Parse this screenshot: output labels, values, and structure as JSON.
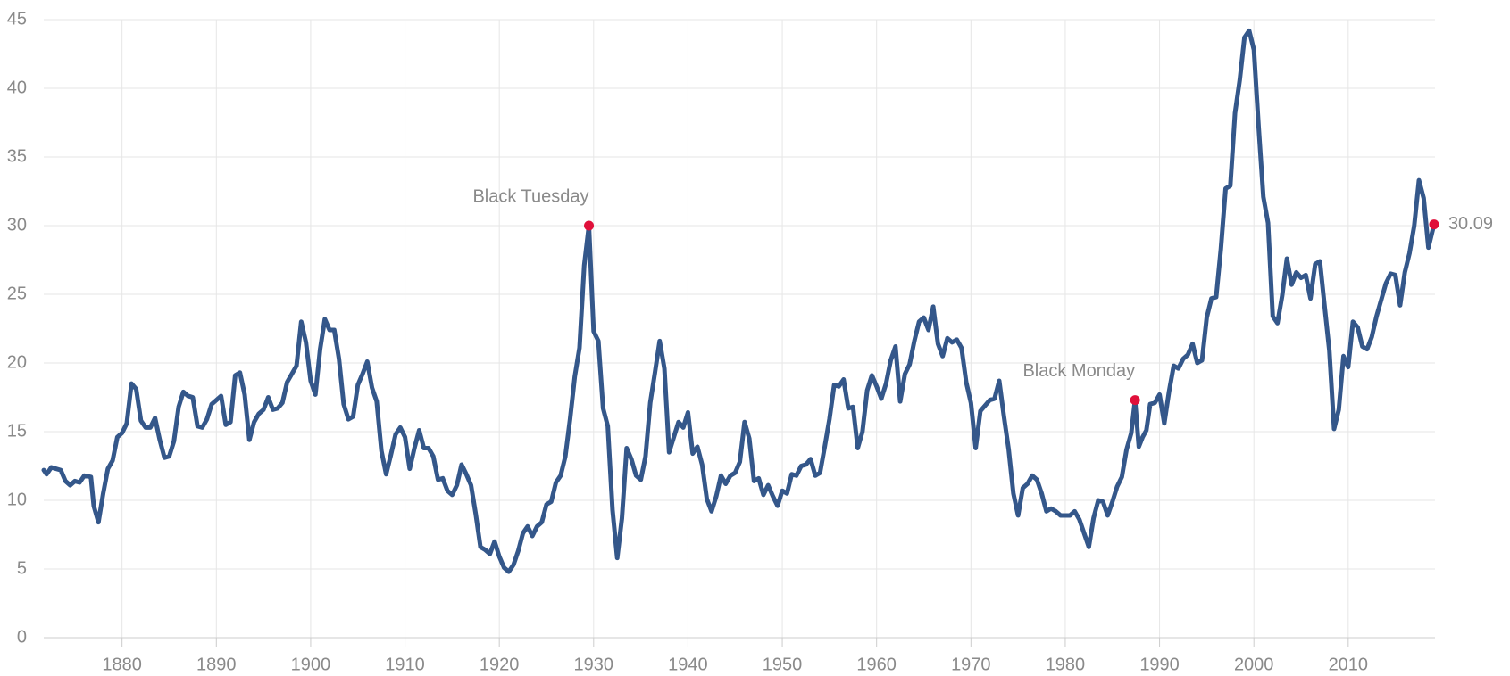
{
  "chart_data": {
    "type": "line",
    "x": [
      1871.7,
      1872,
      1872.5,
      1873.5,
      1874,
      1874.5,
      1875,
      1875.5,
      1876,
      1876.7,
      1877,
      1877.5,
      1878,
      1878.5,
      1879,
      1879.5,
      1880,
      1880.5,
      1881,
      1881.5,
      1882,
      1882.5,
      1883,
      1883.5,
      1884,
      1884.5,
      1885,
      1885.5,
      1886,
      1886.5,
      1887,
      1887.5,
      1888,
      1888.5,
      1889,
      1889.5,
      1890.5,
      1891,
      1891.5,
      1892,
      1892.5,
      1893,
      1893.5,
      1894,
      1894.5,
      1895,
      1895.5,
      1896,
      1896.5,
      1897,
      1897.5,
      1898.5,
      1899,
      1899.5,
      1900,
      1900.5,
      1901,
      1901.5,
      1902,
      1902.5,
      1903,
      1903.5,
      1904,
      1904.5,
      1905,
      1905.5,
      1906,
      1906.5,
      1907,
      1907.5,
      1908,
      1908.5,
      1909,
      1909.5,
      1910,
      1910.5,
      1911,
      1911.5,
      1912,
      1912.5,
      1913,
      1913.5,
      1914,
      1914.5,
      1915,
      1915.5,
      1916,
      1916.5,
      1917,
      1917.5,
      1918,
      1918.5,
      1919,
      1919.5,
      1920,
      1920.5,
      1921,
      1921.5,
      1922,
      1922.5,
      1923,
      1923.5,
      1924,
      1924.5,
      1925,
      1925.5,
      1926,
      1926.5,
      1927,
      1927.5,
      1928,
      1928.5,
      1929,
      1929.5,
      1930,
      1930.5,
      1931,
      1931.5,
      1932,
      1932.5,
      1933,
      1933.5,
      1934,
      1934.5,
      1935,
      1935.5,
      1936,
      1936.5,
      1937,
      1937.5,
      1938,
      1938.5,
      1939,
      1939.5,
      1940,
      1940.5,
      1941,
      1941.5,
      1942,
      1942.5,
      1943,
      1943.5,
      1944,
      1944.5,
      1945,
      1945.5,
      1946,
      1946.5,
      1947,
      1947.5,
      1948,
      1948.5,
      1949,
      1949.5,
      1950,
      1950.5,
      1951,
      1951.5,
      1952,
      1952.5,
      1953,
      1953.5,
      1954,
      1954.5,
      1955,
      1955.5,
      1956,
      1956.5,
      1957,
      1957.5,
      1958,
      1958.5,
      1959,
      1959.5,
      1960,
      1960.5,
      1961,
      1961.5,
      1962,
      1962.5,
      1963,
      1963.5,
      1964,
      1964.5,
      1965,
      1965.5,
      1966,
      1966.5,
      1967,
      1967.5,
      1968,
      1968.5,
      1969,
      1969.5,
      1970,
      1970.5,
      1971,
      1971.5,
      1972,
      1972.5,
      1973,
      1973.5,
      1974,
      1974.5,
      1975,
      1975.5,
      1976,
      1976.5,
      1977,
      1977.5,
      1978,
      1978.5,
      1979,
      1979.5,
      1980,
      1980.5,
      1981,
      1981.5,
      1982,
      1982.5,
      1983,
      1983.5,
      1984,
      1984.5,
      1985,
      1985.5,
      1986,
      1986.5,
      1987,
      1987.4,
      1987.8,
      1988.2,
      1988.6,
      1989,
      1989.5,
      1990,
      1990.5,
      1991,
      1991.5,
      1992,
      1992.5,
      1993,
      1993.5,
      1994,
      1994.5,
      1995,
      1995.5,
      1996,
      1996.5,
      1997,
      1997.5,
      1998,
      1998.5,
      1999,
      1999.5,
      2000,
      2000.5,
      2001,
      2001.5,
      2002,
      2002.5,
      2003,
      2003.5,
      2004,
      2004.5,
      2005,
      2005.5,
      2006,
      2006.5,
      2007,
      2007.5,
      2008,
      2008.5,
      2009,
      2009.5,
      2010,
      2010.5,
      2011,
      2011.5,
      2012,
      2012.5,
      2013,
      2013.5,
      2014,
      2014.5,
      2015,
      2015.5,
      2016,
      2016.5,
      2017,
      2017.5,
      2018,
      2018.5,
      2019.1
    ],
    "values": [
      12.2,
      11.9,
      12.4,
      12.2,
      11.4,
      11.1,
      11.4,
      11.3,
      11.8,
      11.7,
      9.6,
      8.4,
      10.5,
      12.3,
      12.9,
      14.6,
      14.9,
      15.6,
      18.5,
      18.1,
      15.8,
      15.3,
      15.3,
      16.0,
      14.4,
      13.1,
      13.2,
      14.3,
      16.8,
      17.9,
      17.6,
      17.5,
      15.4,
      15.3,
      15.9,
      17.0,
      17.6,
      15.5,
      15.7,
      19.1,
      19.3,
      17.7,
      14.4,
      15.7,
      16.3,
      16.6,
      17.5,
      16.6,
      16.7,
      17.1,
      18.6,
      19.8,
      23.0,
      21.5,
      18.7,
      17.7,
      21.0,
      23.2,
      22.4,
      22.4,
      20.3,
      17.0,
      15.9,
      16.1,
      18.4,
      19.2,
      20.1,
      18.2,
      17.2,
      13.6,
      11.9,
      13.3,
      14.8,
      15.3,
      14.6,
      12.3,
      13.8,
      15.1,
      13.8,
      13.8,
      13.2,
      11.5,
      11.6,
      10.7,
      10.4,
      11.1,
      12.6,
      11.9,
      11.1,
      9.0,
      6.6,
      6.4,
      6.1,
      7.0,
      5.9,
      5.1,
      4.8,
      5.3,
      6.3,
      7.6,
      8.1,
      7.4,
      8.1,
      8.4,
      9.7,
      9.9,
      11.3,
      11.8,
      13.2,
      15.9,
      19.0,
      21.1,
      27.1,
      30.0,
      22.3,
      21.6,
      16.7,
      15.4,
      9.3,
      5.8,
      8.7,
      13.8,
      13.0,
      11.8,
      11.5,
      13.2,
      17.1,
      19.3,
      21.6,
      19.6,
      13.5,
      14.6,
      15.7,
      15.3,
      16.4,
      13.4,
      13.9,
      12.6,
      10.1,
      9.2,
      10.3,
      11.8,
      11.2,
      11.8,
      12.0,
      12.8,
      15.7,
      14.5,
      11.4,
      11.6,
      10.4,
      11.1,
      10.3,
      9.6,
      10.7,
      10.5,
      11.9,
      11.8,
      12.5,
      12.6,
      13.0,
      11.8,
      12.0,
      13.9,
      15.9,
      18.4,
      18.3,
      18.8,
      16.7,
      16.8,
      13.8,
      15.0,
      18.0,
      19.1,
      18.3,
      17.4,
      18.5,
      20.2,
      21.2,
      17.2,
      19.2,
      19.9,
      21.6,
      23.0,
      23.3,
      22.4,
      24.1,
      21.4,
      20.5,
      21.8,
      21.5,
      21.7,
      21.1,
      18.6,
      17.1,
      13.8,
      16.5,
      16.9,
      17.3,
      17.4,
      18.7,
      16.1,
      13.7,
      10.5,
      8.9,
      10.9,
      11.2,
      11.8,
      11.5,
      10.5,
      9.2,
      9.4,
      9.2,
      8.9,
      8.9,
      8.9,
      9.2,
      8.6,
      7.6,
      6.6,
      8.7,
      10.0,
      9.9,
      8.9,
      9.9,
      11.0,
      11.7,
      13.7,
      14.9,
      17.3,
      13.9,
      14.6,
      15.1,
      17.0,
      17.1,
      17.7,
      15.6,
      17.9,
      19.8,
      19.6,
      20.3,
      20.6,
      21.4,
      20.0,
      20.2,
      23.3,
      24.7,
      24.8,
      28.3,
      32.7,
      32.9,
      38.2,
      40.6,
      43.7,
      44.2,
      42.8,
      37.2,
      32.1,
      30.2,
      23.4,
      22.9,
      24.9,
      27.6,
      25.7,
      26.6,
      26.2,
      26.4,
      24.7,
      27.2,
      27.4,
      24.1,
      20.9,
      15.2,
      16.6,
      20.5,
      19.7,
      23.0,
      22.6,
      21.2,
      21.0,
      21.9,
      23.4,
      24.6,
      25.8,
      26.5,
      26.4,
      24.2,
      26.6,
      28.0,
      30.0,
      33.3,
      32.0,
      28.4,
      30.09
    ],
    "color": "#34578a",
    "annotations": [
      {
        "text": "Black Tuesday",
        "x": 1929.5,
        "y": 30.0
      },
      {
        "text": "Black Monday",
        "x": 1987.4,
        "y": 17.3
      },
      {
        "x": 2019.1,
        "y": 30.09
      }
    ],
    "annotation_color": "#e0103a",
    "xlim": [
      1871.7,
      2019.2
    ],
    "xticks": [
      1880,
      1890,
      1900,
      1910,
      1920,
      1930,
      1940,
      1950,
      1960,
      1970,
      1980,
      1990,
      2000,
      2010
    ],
    "ylim": [
      0,
      45
    ],
    "yticks": [
      0,
      5,
      10,
      15,
      20,
      25,
      30,
      35,
      40,
      45
    ],
    "grid": true
  }
}
